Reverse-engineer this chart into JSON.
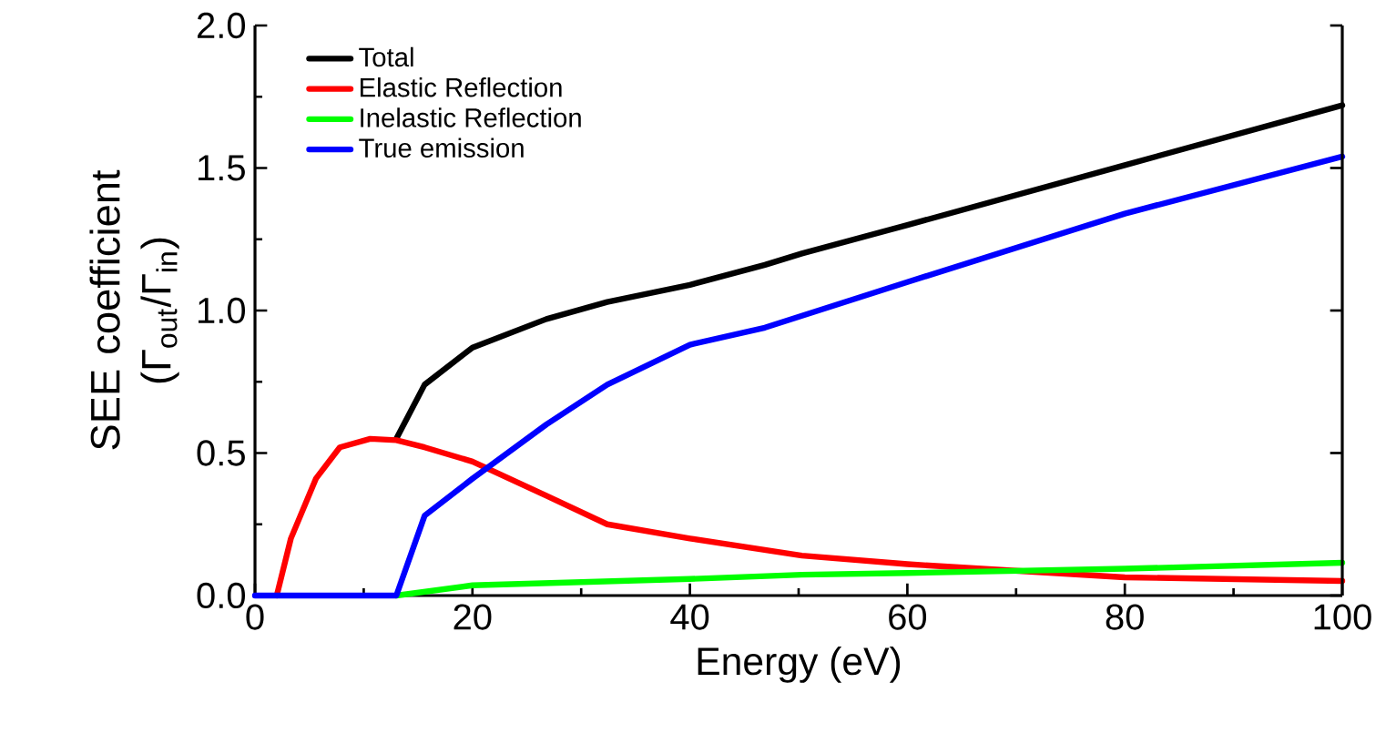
{
  "chart_data": {
    "type": "line",
    "xlabel": "Energy (eV)",
    "ylabel": "SEE coefficient (Γ$_{out}$/Γ$_{in}$)",
    "xlim": [
      0,
      100
    ],
    "ylim": [
      0,
      2.0
    ],
    "xticks": [
      0,
      20,
      40,
      60,
      80,
      100
    ],
    "yticks": [
      {
        "value": 0,
        "label": "0.0"
      },
      0.5,
      {
        "value": 1,
        "label": "1.0"
      },
      1.5,
      {
        "value": 2,
        "label": "2.0"
      }
    ],
    "grid": false,
    "legend": "top left",
    "marker": "none",
    "line_style": "solid",
    "series": [
      {
        "name": "Total",
        "color": "#000000",
        "x": [
          13,
          15.6,
          20,
          26.8,
          32.4,
          40,
          46.9,
          50.3,
          60,
          80,
          100
        ],
        "values": [
          0.55,
          0.74,
          0.87,
          0.97,
          1.03,
          1.09,
          1.16,
          1.2,
          1.3,
          1.51,
          1.72
        ]
      },
      {
        "name": "Elastic Reflection",
        "color": "#ff0000",
        "x": [
          2,
          3.3,
          5.6,
          7.8,
          10.6,
          13,
          15.6,
          20,
          26.8,
          32.4,
          40,
          50.3,
          60,
          80,
          100
        ],
        "values": [
          0,
          0.2,
          0.41,
          0.52,
          0.55,
          0.545,
          0.52,
          0.47,
          0.35,
          0.25,
          0.2,
          0.14,
          0.11,
          0.064,
          0.051
        ]
      },
      {
        "name": "Inelastic Reflection",
        "color": "#00ff00",
        "x": [
          13,
          20,
          40,
          50.3,
          60,
          80,
          100
        ],
        "values": [
          0,
          0.036,
          0.058,
          0.073,
          0.079,
          0.094,
          0.115
        ]
      },
      {
        "name": "True emission",
        "color": "#0000ff",
        "x": [
          0,
          13,
          15.6,
          20,
          26.8,
          32.4,
          40,
          46.9,
          60,
          80,
          100
        ],
        "values": [
          0,
          0,
          0.28,
          0.41,
          0.6,
          0.74,
          0.88,
          0.94,
          1.1,
          1.34,
          1.54
        ]
      }
    ]
  }
}
